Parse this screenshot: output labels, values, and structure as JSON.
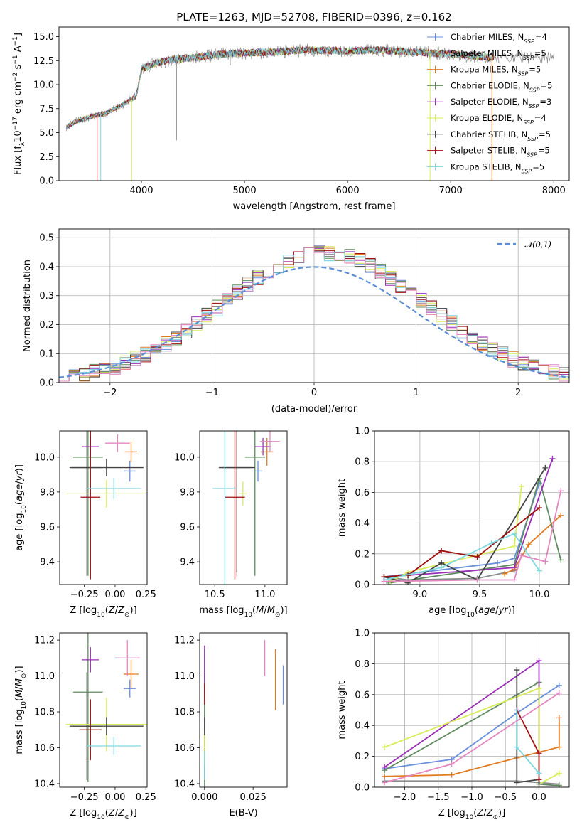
{
  "colors": {
    "Chabrier MILES": "#6a8fdc",
    "Salpeter MILES": "#8b8b8b",
    "Kroupa MILES": "#e07b22",
    "Chabrier ELODIE": "#5f8a5f",
    "Salpeter ELODIE": "#9b2fb7",
    "Kroupa ELODIE": "#d9ec5a",
    "Chabrier STELIB": "#444444",
    "Salpeter STELIB": "#a00f0f",
    "Kroupa STELIB": "#7dd9e0",
    "Kroupa STELIB pink": "#e487c0"
  },
  "chart_data": [
    {
      "id": "spectrum",
      "type": "line",
      "title": "PLATE=1263, MJD=52708, FIBERID=0396, z=0.162",
      "xlabel": "wavelength [Angstrom, rest frame]",
      "ylabel": "Flux [f_λ10^-17 erg cm^-2 s^-1 A^-1]",
      "xlim": [
        3200,
        8150
      ],
      "ylim": [
        0,
        16
      ],
      "xticks": [
        4000,
        5000,
        6000,
        7000,
        8000
      ],
      "yticks": [
        0.0,
        2.5,
        5.0,
        7.5,
        10.0,
        12.5,
        15.0
      ],
      "legend_position": "right",
      "legend": [
        {
          "label": "Chabrier MILES, N_SSP=4",
          "base": "Chabrier MILES, N",
          "sub": "SSP",
          "tail": "=4",
          "color": "#6a8fdc"
        },
        {
          "label": "Salpeter MILES, N_SSP=5",
          "base": "Salpeter MILES, N",
          "sub": "SSP",
          "tail": "=5",
          "color": "#8b8b8b"
        },
        {
          "label": "Kroupa MILES, N_SSP=5",
          "base": "Kroupa MILES, N",
          "sub": "SSP",
          "tail": "=5",
          "color": "#e07b22"
        },
        {
          "label": "Chabrier ELODIE, N_SSP=5",
          "base": "Chabrier ELODIE, N",
          "sub": "SSP",
          "tail": "=5",
          "color": "#5f8a5f"
        },
        {
          "label": "Salpeter ELODIE, N_SSP=3",
          "base": "Salpeter ELODIE, N",
          "sub": "SSP",
          "tail": "=3",
          "color": "#9b2fb7"
        },
        {
          "label": "Kroupa ELODIE, N_SSP=4",
          "base": "Kroupa ELODIE, N",
          "sub": "SSP",
          "tail": "=4",
          "color": "#d9ec5a"
        },
        {
          "label": "Chabrier STELIB, N_SSP=5",
          "base": "Chabrier STELIB, N",
          "sub": "SSP",
          "tail": "=5",
          "color": "#444444"
        },
        {
          "label": "Salpeter STELIB, N_SSP=5",
          "base": "Salpeter STELIB, N",
          "sub": "SSP",
          "tail": "=5",
          "color": "#a00f0f"
        },
        {
          "label": "Kroupa STELIB, N_SSP=5",
          "base": "Kroupa STELIB, N",
          "sub": "SSP",
          "tail": "=5",
          "color": "#7dd9e0"
        }
      ],
      "trend": [
        [
          3270,
          5.6
        ],
        [
          3400,
          6.3
        ],
        [
          3550,
          6.8
        ],
        [
          3650,
          7.0
        ],
        [
          3800,
          7.8
        ],
        [
          3950,
          8.8
        ],
        [
          4000,
          11.6
        ],
        [
          4150,
          12.3
        ],
        [
          4300,
          12.6
        ],
        [
          4500,
          12.8
        ],
        [
          4800,
          13.2
        ],
        [
          5000,
          13.3
        ],
        [
          5300,
          13.4
        ],
        [
          5600,
          13.6
        ],
        [
          6000,
          13.5
        ],
        [
          6300,
          13.6
        ],
        [
          6600,
          13.4
        ],
        [
          7000,
          13.2
        ],
        [
          7400,
          12.8
        ]
      ],
      "dips": [
        [
          3570,
          0
        ],
        [
          3605,
          0
        ],
        [
          3905,
          0
        ],
        [
          4340,
          4.2
        ],
        [
          4861,
          12.0
        ],
        [
          6800,
          0
        ],
        [
          7400,
          0
        ]
      ]
    },
    {
      "id": "residuals",
      "type": "histogram",
      "xlabel": "(data-model)/error",
      "ylabel": "Normed distribution",
      "xlim": [
        -2.5,
        2.5
      ],
      "ylim": [
        0,
        0.53
      ],
      "xticks": [
        -2,
        -1,
        0,
        1,
        2
      ],
      "yticks": [
        0.0,
        0.1,
        0.2,
        0.3,
        0.4,
        0.5
      ],
      "bin_width": 0.1,
      "grid": true,
      "reference": {
        "label": "𝒩(0,1)",
        "style": "dashed",
        "color": "#5b8ed6",
        "legend_position": "top-right"
      },
      "series_colors": [
        "#6a8fdc",
        "#8b8b8b",
        "#e07b22",
        "#5f8a5f",
        "#9b2fb7",
        "#d9ec5a",
        "#444444",
        "#a00f0f",
        "#7dd9e0",
        "#e487c0"
      ]
    },
    {
      "id": "age_vs_Z",
      "type": "errorbar",
      "xlabel": "Z [log10(Z/Z⊙)]",
      "ylabel": "age [log10(age/yr)]",
      "xlim": [
        -0.45,
        0.26
      ],
      "ylim": [
        9.27,
        10.15
      ],
      "xticks": [
        -0.25,
        0.0,
        0.25
      ],
      "xticklabels": [
        "−0.25",
        "0.00",
        "0.25"
      ],
      "yticks": [
        9.4,
        9.6,
        9.8,
        10.0
      ],
      "points": [
        {
          "color": "#6a8fdc",
          "x": 0.12,
          "y": 9.92,
          "xerr": 0.05,
          "yerr": 0.06
        },
        {
          "color": "#8b8b8b",
          "x": -0.23,
          "y": 9.94,
          "xerr": 0.12,
          "yerr": 0.62
        },
        {
          "color": "#e07b22",
          "x": 0.13,
          "y": 10.03,
          "xerr": 0.05,
          "yerr": 0.06
        },
        {
          "color": "#5f8a5f",
          "x": -0.22,
          "y": 10.0,
          "xerr": 0.12,
          "yerr": 0.68
        },
        {
          "color": "#9b2fb7",
          "x": -0.2,
          "y": 10.06,
          "xerr": 0.07,
          "yerr": 0.06
        },
        {
          "color": "#d9ec5a",
          "x": -0.07,
          "y": 9.79,
          "xerr": 0.32,
          "yerr": 0.08
        },
        {
          "color": "#444444",
          "x": -0.07,
          "y": 9.94,
          "xerr": 0.3,
          "yerr": 0.05
        },
        {
          "color": "#a00f0f",
          "x": -0.2,
          "y": 9.77,
          "xerr": 0.08,
          "yerr": 0.47
        },
        {
          "color": "#7dd9e0",
          "x": -0.01,
          "y": 9.82,
          "xerr": 0.22,
          "yerr": 0.06
        },
        {
          "color": "#e487c0",
          "x": 0.02,
          "y": 10.08,
          "xerr": 0.1,
          "yerr": 0.05
        }
      ]
    },
    {
      "id": "age_vs_mass",
      "type": "errorbar",
      "xlabel": "mass [log10(M/M⊙)]",
      "ylabel": "",
      "xlim": [
        10.35,
        11.22
      ],
      "ylim": [
        9.27,
        10.15
      ],
      "xticks": [
        10.5,
        11.0
      ],
      "xticklabels": [
        "10.5",
        "11.0"
      ],
      "yticks": [
        9.4,
        9.6,
        9.8,
        10.0
      ],
      "points": [
        {
          "color": "#6a8fdc",
          "x": 10.93,
          "y": 9.92,
          "xerr": 0.04,
          "yerr": 0.06
        },
        {
          "color": "#8b8b8b",
          "x": 10.72,
          "y": 9.94,
          "xerr": 0.14,
          "yerr": 0.62
        },
        {
          "color": "#e07b22",
          "x": 11.02,
          "y": 10.03,
          "xerr": 0.06,
          "yerr": 0.08
        },
        {
          "color": "#5f8a5f",
          "x": 10.9,
          "y": 10.0,
          "xerr": 0.1,
          "yerr": 0.68
        },
        {
          "color": "#9b2fb7",
          "x": 10.98,
          "y": 10.06,
          "xerr": 0.08,
          "yerr": 0.05
        },
        {
          "color": "#d9ec5a",
          "x": 10.78,
          "y": 9.79,
          "xerr": 0.04,
          "yerr": 0.07
        },
        {
          "color": "#444444",
          "x": 10.72,
          "y": 9.94,
          "xerr": 0.18,
          "yerr": 0.6
        },
        {
          "color": "#a00f0f",
          "x": 10.7,
          "y": 9.77,
          "xerr": 0.1,
          "yerr": 0.47
        },
        {
          "color": "#7dd9e0",
          "x": 10.6,
          "y": 9.82,
          "xerr": 0.12,
          "yerr": 0.6
        },
        {
          "color": "#e487c0",
          "x": 11.05,
          "y": 10.09,
          "xerr": 0.1,
          "yerr": 0.06
        }
      ]
    },
    {
      "id": "massweight_vs_age",
      "type": "line",
      "xlabel": "age [log10(age/yr)]",
      "ylabel": "mass weight",
      "xlim": [
        8.62,
        10.25
      ],
      "ylim": [
        0,
        1
      ],
      "xticks": [
        9.0,
        9.5,
        10.0
      ],
      "xticklabels": [
        "9.0",
        "9.5",
        "10.0"
      ],
      "yticks": [
        0.0,
        0.2,
        0.4,
        0.6,
        0.8,
        1.0
      ],
      "grid": true,
      "series": [
        {
          "color": "#6a8fdc",
          "x": [
            8.7,
            9.65,
            9.79,
            10.0
          ],
          "y": [
            0.05,
            0.14,
            0.17,
            0.66
          ]
        },
        {
          "color": "#8b8b8b",
          "x": [
            8.7,
            8.9,
            9.48,
            9.79
          ],
          "y": [
            0.05,
            0.03,
            0.04,
            0.09
          ]
        },
        {
          "color": "#e07b22",
          "x": [
            9.71,
            9.79,
            9.91,
            10.18
          ],
          "y": [
            0.07,
            0.1,
            0.26,
            0.45
          ]
        },
        {
          "color": "#5f8a5f",
          "x": [
            8.74,
            9.79,
            10.0,
            10.18
          ],
          "y": [
            0.01,
            0.13,
            0.69,
            0.16
          ]
        },
        {
          "color": "#9b2fb7",
          "x": [
            8.9,
            9.79,
            10.11
          ],
          "y": [
            0.06,
            0.11,
            0.82
          ]
        },
        {
          "color": "#d9ec5a",
          "x": [
            8.75,
            8.9,
            9.79,
            9.85
          ],
          "y": [
            0.02,
            0.08,
            0.25,
            0.64
          ]
        },
        {
          "color": "#444444",
          "x": [
            8.7,
            8.9,
            9.18,
            9.48,
            10.05
          ],
          "y": [
            0.05,
            0.01,
            0.14,
            0.03,
            0.76
          ]
        },
        {
          "color": "#a00f0f",
          "x": [
            8.7,
            8.9,
            9.18,
            9.48,
            10.0
          ],
          "y": [
            0.05,
            0.06,
            0.22,
            0.18,
            0.5
          ]
        },
        {
          "color": "#7dd9e0",
          "x": [
            8.7,
            9.18,
            9.6,
            9.79,
            10.0
          ],
          "y": [
            0.03,
            0.11,
            0.27,
            0.33,
            0.09
          ]
        },
        {
          "color": "#e487c0",
          "x": [
            8.7,
            9.48,
            9.79,
            9.85,
            10.05,
            10.18
          ],
          "y": [
            0.02,
            0.03,
            0.03,
            0.19,
            0.15,
            0.61
          ]
        }
      ]
    },
    {
      "id": "mass_vs_Z",
      "type": "errorbar",
      "xlabel": "Z [log10(Z/Z⊙)]",
      "ylabel": "mass [log10(M/M⊙)]",
      "xlim": [
        -0.45,
        0.26
      ],
      "ylim": [
        10.38,
        11.24
      ],
      "xticks": [
        -0.25,
        0.0,
        0.25
      ],
      "xticklabels": [
        "−0.25",
        "0.00",
        "0.25"
      ],
      "yticks": [
        10.4,
        10.6,
        10.8,
        11.0,
        11.2
      ],
      "points": [
        {
          "color": "#6a8fdc",
          "x": 0.12,
          "y": 10.93,
          "xerr": 0.05,
          "yerr": 0.05
        },
        {
          "color": "#8b8b8b",
          "x": -0.23,
          "y": 10.72,
          "xerr": 0.12,
          "yerr": 0.3
        },
        {
          "color": "#e07b22",
          "x": 0.13,
          "y": 11.01,
          "xerr": 0.06,
          "yerr": 0.08
        },
        {
          "color": "#5f8a5f",
          "x": -0.22,
          "y": 10.91,
          "xerr": 0.12,
          "yerr": 0.5
        },
        {
          "color": "#9b2fb7",
          "x": -0.2,
          "y": 11.09,
          "xerr": 0.07,
          "yerr": 0.07
        },
        {
          "color": "#d9ec5a",
          "x": -0.07,
          "y": 10.73,
          "xerr": 0.33,
          "yerr": 0.15
        },
        {
          "color": "#444444",
          "x": -0.07,
          "y": 10.72,
          "xerr": 0.3,
          "yerr": 0.05
        },
        {
          "color": "#a00f0f",
          "x": -0.2,
          "y": 10.7,
          "xerr": 0.09,
          "yerr": 0.17
        },
        {
          "color": "#7dd9e0",
          "x": -0.01,
          "y": 10.61,
          "xerr": 0.22,
          "yerr": 0.05
        },
        {
          "color": "#e487c0",
          "x": 0.1,
          "y": 11.1,
          "xerr": 0.1,
          "yerr": 0.1
        }
      ]
    },
    {
      "id": "mass_vs_EBV",
      "type": "errorbar",
      "xlabel": "E(B-V)",
      "ylabel": "",
      "xlim": [
        -0.0025,
        0.0425
      ],
      "ylim": [
        10.38,
        11.24
      ],
      "xticks": [
        0.0,
        0.025
      ],
      "xticklabels": [
        "0.000",
        "0.025"
      ],
      "yticks": [
        10.4,
        10.6,
        10.8,
        11.0,
        11.2
      ],
      "points": [
        {
          "color": "#6a8fdc",
          "x": 0.0405,
          "y": 10.95,
          "xerr": 0,
          "yerr": 0.11
        },
        {
          "color": "#8b8b8b",
          "x": 0.0,
          "y": 10.72,
          "xerr": 0,
          "yerr": 0.3
        },
        {
          "color": "#e07b22",
          "x": 0.0365,
          "y": 10.98,
          "xerr": 0,
          "yerr": 0.17
        },
        {
          "color": "#5f8a5f",
          "x": 0.0,
          "y": 10.75,
          "xerr": 0,
          "yerr": 0.4
        },
        {
          "color": "#9b2fb7",
          "x": 0.0,
          "y": 11.03,
          "xerr": 0,
          "yerr": 0.14
        },
        {
          "color": "#d9ec5a",
          "x": 0.0,
          "y": 10.6,
          "xerr": 0,
          "yerr": 0.1
        },
        {
          "color": "#444444",
          "x": 0.0,
          "y": 10.72,
          "xerr": 0,
          "yerr": 0.05
        },
        {
          "color": "#a00f0f",
          "x": 0.0,
          "y": 10.9,
          "xerr": 0,
          "yerr": 0.06
        },
        {
          "color": "#7dd9e0",
          "x": 0.0,
          "y": 10.5,
          "xerr": 0,
          "yerr": 0.08
        },
        {
          "color": "#e487c0",
          "x": 0.031,
          "y": 11.1,
          "xerr": 0,
          "yerr": 0.1
        }
      ]
    },
    {
      "id": "massweight_vs_Z",
      "type": "line",
      "xlabel": "Z [log10(Z/Z⊙)]",
      "ylabel": "mass weight",
      "xlim": [
        -2.45,
        0.45
      ],
      "ylim": [
        0,
        1
      ],
      "xticks": [
        -2.0,
        -1.5,
        -1.0,
        -0.5,
        0.0
      ],
      "xticklabels": [
        "−2.0",
        "−1.5",
        "−1.0",
        "−0.5",
        "0.0"
      ],
      "yticks": [
        0.0,
        0.2,
        0.4,
        0.6,
        0.8,
        1.0
      ],
      "grid": true,
      "series": [
        {
          "color": "#6a8fdc",
          "x": [
            -2.3,
            -1.3,
            -0.33,
            0.3
          ],
          "y": [
            0.12,
            0.18,
            0.48,
            0.66
          ]
        },
        {
          "color": "#8b8b8b",
          "x": [
            -2.3,
            -0.33,
            0.0,
            0.3
          ],
          "y": [
            0.04,
            0.04,
            0.03,
            0.02
          ]
        },
        {
          "color": "#e07b22",
          "x": [
            -2.3,
            -1.3,
            -0.33,
            0.3,
            0.3
          ],
          "y": [
            0.07,
            0.08,
            0.19,
            0.26,
            0.45
          ]
        },
        {
          "color": "#5f8a5f",
          "x": [
            -2.3,
            0.0,
            0.0,
            0.3
          ],
          "y": [
            0.11,
            0.68,
            0.02,
            0.01
          ]
        },
        {
          "color": "#9b2fb7",
          "x": [
            -2.3,
            0.0,
            0.0
          ],
          "y": [
            0.13,
            0.82,
            0.09
          ]
        },
        {
          "color": "#d9ec5a",
          "x": [
            -2.3,
            0.0,
            0.0,
            0.3
          ],
          "y": [
            0.26,
            0.64,
            0.02,
            0.09
          ]
        },
        {
          "color": "#444444",
          "x": [
            -0.33,
            -0.33,
            0.0,
            0.0
          ],
          "y": [
            0.76,
            0.03,
            0.05,
            0.02
          ]
        },
        {
          "color": "#a00f0f",
          "x": [
            -0.33,
            0.0,
            0.0
          ],
          "y": [
            0.5,
            0.22,
            0.05
          ]
        },
        {
          "color": "#7dd9e0",
          "x": [
            -0.33,
            -0.33,
            0.0
          ],
          "y": [
            0.5,
            0.26,
            0.09
          ]
        },
        {
          "color": "#e487c0",
          "x": [
            -2.3,
            -1.3,
            0.3
          ],
          "y": [
            0.03,
            0.15,
            0.61
          ]
        }
      ]
    }
  ]
}
